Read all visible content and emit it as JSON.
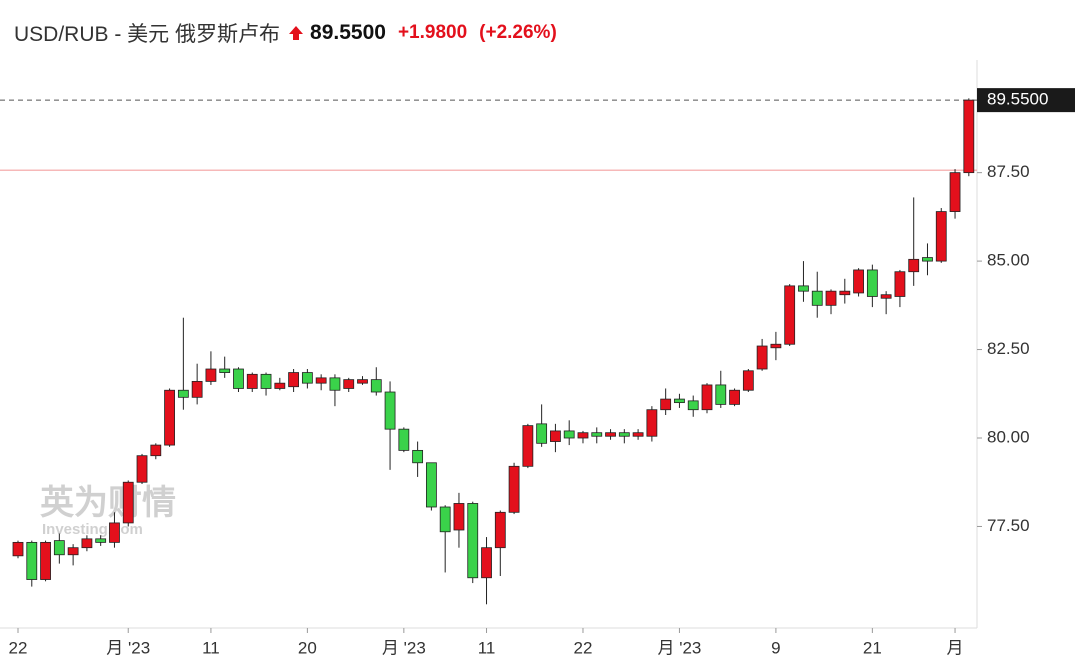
{
  "header": {
    "title": "USD/RUB - 美元 俄罗斯卢布",
    "price": "89.5500",
    "change": "+1.9800",
    "change_pct": "(+2.26%)"
  },
  "chart_data": {
    "type": "candlestick",
    "categories": [
      "22",
      null,
      null,
      null,
      null,
      null,
      null,
      null,
      "月 '23",
      null,
      null,
      null,
      null,
      null,
      "11",
      null,
      null,
      null,
      null,
      null,
      null,
      "20",
      null,
      null,
      null,
      null,
      null,
      null,
      "月 '23",
      null,
      null,
      null,
      null,
      null,
      "11",
      null,
      null,
      null,
      null,
      null,
      null,
      "22",
      null,
      null,
      null,
      null,
      null,
      null,
      "月 '23",
      null,
      null,
      null,
      null,
      null,
      null,
      "9",
      null,
      null,
      null,
      null,
      null,
      null,
      "21",
      null,
      null,
      null,
      null,
      null,
      "月",
      null
    ],
    "open": [
      76.67,
      77.05,
      76.0,
      77.1,
      76.7,
      76.9,
      77.15,
      77.05,
      77.6,
      78.75,
      79.5,
      79.8,
      81.35,
      81.15,
      81.6,
      81.95,
      81.95,
      81.4,
      81.8,
      81.4,
      81.45,
      81.85,
      81.55,
      81.7,
      81.4,
      81.55,
      81.65,
      81.3,
      80.25,
      79.65,
      79.3,
      78.05,
      77.4,
      78.15,
      76.05,
      76.9,
      77.9,
      79.2,
      80.4,
      79.9,
      80.2,
      80.0,
      80.15,
      80.05,
      80.15,
      80.05,
      80.05,
      80.8,
      81.1,
      81.05,
      80.8,
      81.5,
      80.95,
      81.35,
      81.95,
      82.55,
      82.65,
      84.3,
      84.15,
      83.75,
      84.05,
      84.1,
      84.75,
      83.95,
      84.0,
      84.7,
      85.1,
      85.0,
      86.4,
      87.5
    ],
    "high": [
      77.1,
      77.1,
      77.1,
      77.3,
      77.0,
      77.25,
      77.25,
      77.9,
      78.8,
      79.55,
      79.85,
      81.4,
      83.4,
      82.1,
      82.45,
      82.3,
      82.0,
      81.85,
      81.85,
      81.7,
      81.95,
      81.95,
      81.8,
      81.8,
      81.7,
      81.75,
      82.0,
      81.6,
      80.3,
      79.9,
      79.3,
      78.1,
      78.45,
      78.2,
      77.2,
      77.95,
      79.3,
      80.4,
      80.95,
      80.4,
      80.5,
      80.2,
      80.3,
      80.25,
      80.25,
      80.25,
      80.9,
      81.4,
      81.25,
      81.2,
      81.55,
      81.9,
      81.4,
      81.95,
      82.8,
      83.0,
      84.35,
      85.0,
      84.7,
      84.2,
      84.5,
      84.8,
      84.9,
      84.15,
      84.75,
      86.8,
      85.5,
      86.5,
      87.6,
      89.6
    ],
    "low": [
      76.6,
      75.8,
      75.95,
      76.45,
      76.4,
      76.8,
      76.95,
      76.9,
      77.5,
      78.7,
      79.4,
      79.75,
      80.8,
      80.95,
      81.5,
      81.7,
      81.3,
      81.3,
      81.2,
      81.35,
      81.3,
      81.4,
      81.35,
      80.9,
      81.3,
      81.5,
      81.2,
      79.1,
      79.6,
      78.9,
      77.95,
      76.2,
      76.9,
      75.9,
      75.3,
      76.1,
      77.85,
      79.15,
      79.75,
      79.6,
      79.8,
      79.85,
      79.85,
      79.95,
      79.85,
      79.95,
      79.9,
      80.65,
      80.85,
      80.6,
      80.7,
      80.85,
      80.9,
      81.3,
      81.9,
      82.2,
      82.6,
      83.85,
      83.4,
      83.5,
      83.8,
      84.0,
      83.7,
      83.5,
      83.7,
      84.3,
      84.6,
      84.95,
      86.2,
      87.4
    ],
    "close": [
      77.05,
      76.0,
      77.05,
      76.7,
      76.9,
      77.15,
      77.05,
      77.6,
      78.75,
      79.5,
      79.8,
      81.35,
      81.15,
      81.6,
      81.95,
      81.85,
      81.4,
      81.8,
      81.4,
      81.55,
      81.85,
      81.55,
      81.7,
      81.35,
      81.65,
      81.65,
      81.3,
      80.25,
      79.65,
      79.3,
      78.05,
      77.35,
      78.15,
      76.05,
      76.9,
      77.9,
      79.2,
      80.35,
      79.85,
      80.2,
      80.0,
      80.15,
      80.05,
      80.15,
      80.05,
      80.15,
      80.8,
      81.1,
      81.0,
      80.8,
      81.5,
      80.95,
      81.35,
      81.9,
      82.6,
      82.65,
      84.3,
      84.15,
      83.75,
      84.15,
      84.15,
      84.75,
      84.0,
      84.05,
      84.7,
      85.05,
      85.0,
      86.4,
      87.5,
      89.55
    ],
    "up_color": "#e3101c",
    "down_color": "#3ad24a",
    "reference_line": 87.57,
    "reference_color": "#f4a0a0",
    "last_label": "89.5500",
    "ylim": [
      74.63,
      90.26
    ],
    "yticks": [
      {
        "value": 77.5,
        "label": "77.50"
      },
      {
        "value": 80,
        "label": "80.00"
      },
      {
        "value": 82.5,
        "label": "82.50"
      },
      {
        "value": 85,
        "label": "85.00"
      },
      {
        "value": 87.5,
        "label": "87.50"
      }
    ],
    "watermark": [
      "英为财情",
      "Investing.com"
    ]
  }
}
